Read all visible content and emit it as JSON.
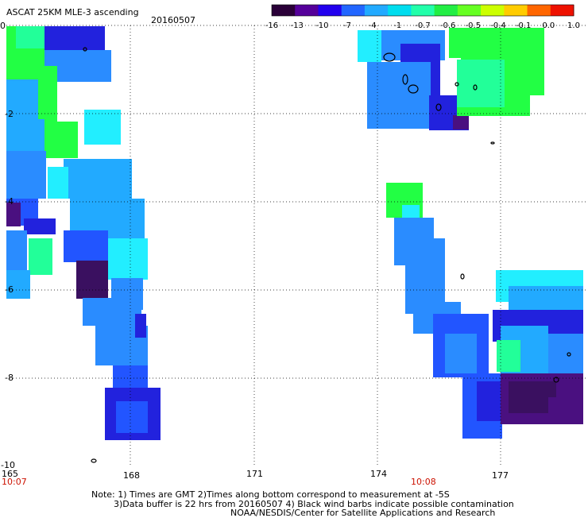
{
  "header": {
    "title": "ASCAT 25KM MLE-3 ascending",
    "date": "20160507"
  },
  "colorbar": {
    "tick_labels": [
      "-16",
      "-13",
      "-10",
      "-7",
      "-4",
      "-1",
      "-0.7",
      "-0.6",
      "-0.5",
      "-0.4",
      "-0.1",
      "0.0",
      "1.0"
    ],
    "colors": [
      "#2a0038",
      "#55009a",
      "#2200ee",
      "#2266ff",
      "#22aaff",
      "#00ddee",
      "#22ffaa",
      "#22ee44",
      "#66ff22",
      "#ccff00",
      "#ffcc00",
      "#ff6600",
      "#ee1100"
    ]
  },
  "axes": {
    "x_ticks": [
      "165",
      "168",
      "171",
      "174",
      "177"
    ],
    "y_ticks": [
      "0",
      "-2",
      "-4",
      "-6",
      "-8",
      "-10"
    ],
    "time_left": "10:07",
    "time_right": "10:08"
  },
  "notes": {
    "line1": "Note: 1) Times are GMT 2)Times along bottom correspond to measurement at -5S",
    "line2": "3)Data buffer is 22 hrs from 20160507 4) Black wind barbs indicate possible contamination",
    "line3": "NOAA/NESDIS/Center for Satellite Applications and Research"
  },
  "palette": {
    "deep_purple": "#3a1060",
    "purple": "#4a1080",
    "dark_blue": "#2222dd",
    "blue": "#2255ff",
    "mid_blue": "#2a8cff",
    "light_blue": "#22aaff",
    "cyan_blue": "#22ccff",
    "cyan": "#22eeff",
    "green": "#22ff44",
    "aqua_green": "#22ff99"
  }
}
